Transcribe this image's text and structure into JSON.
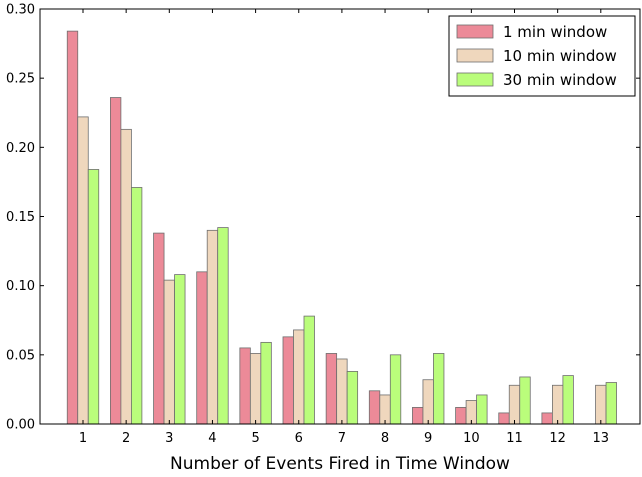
{
  "chart_data": {
    "type": "bar",
    "title": "",
    "xlabel": "Number of Events Fired in Time Window",
    "ylabel": "",
    "categories": [
      "1",
      "2",
      "3",
      "4",
      "5",
      "6",
      "7",
      "8",
      "9",
      "10",
      "11",
      "12",
      "13"
    ],
    "ylim": [
      0,
      0.3
    ],
    "yticks": [
      "0.00",
      "0.05",
      "0.10",
      "0.15",
      "0.20",
      "0.25",
      "0.30"
    ],
    "grid": false,
    "legend_position": "top-right",
    "series": [
      {
        "name": "1 min window",
        "color": "#ec8a98",
        "values": [
          0.284,
          0.236,
          0.138,
          0.11,
          0.055,
          0.063,
          0.051,
          0.024,
          0.012,
          0.012,
          0.008,
          0.008,
          0.0
        ]
      },
      {
        "name": "10 min window",
        "color": "#efd7bd",
        "values": [
          0.222,
          0.213,
          0.104,
          0.14,
          0.051,
          0.068,
          0.047,
          0.021,
          0.032,
          0.017,
          0.028,
          0.028,
          0.028
        ]
      },
      {
        "name": "30 min window",
        "color": "#bafd7b",
        "values": [
          0.184,
          0.171,
          0.108,
          0.142,
          0.059,
          0.078,
          0.038,
          0.05,
          0.051,
          0.021,
          0.034,
          0.035,
          0.03
        ]
      }
    ]
  }
}
